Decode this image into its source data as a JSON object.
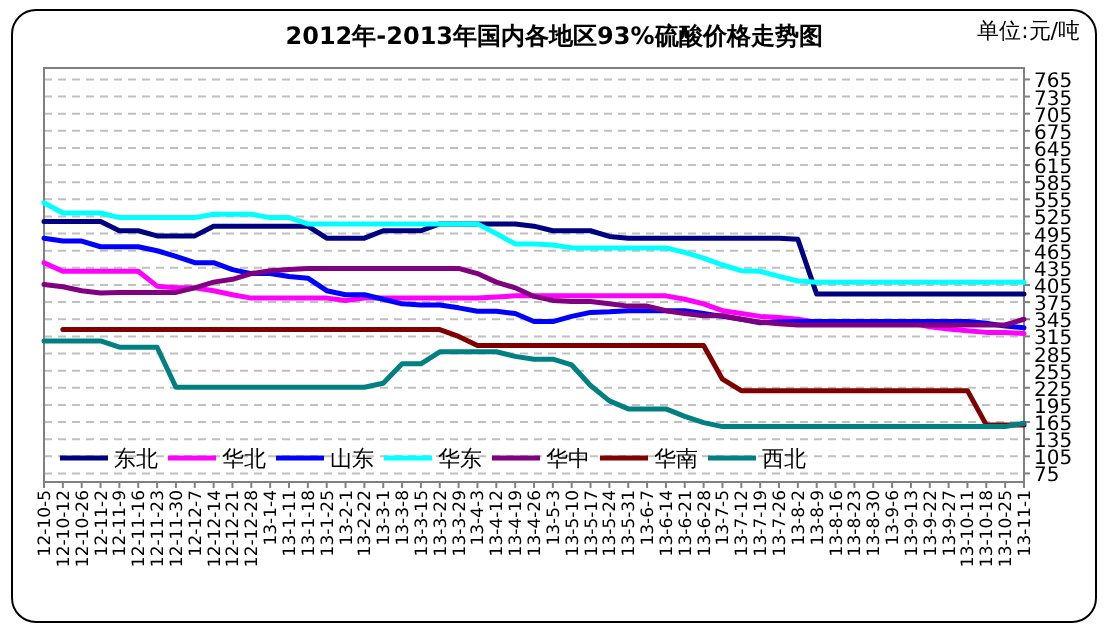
{
  "chart_data": {
    "type": "line",
    "title": "2012年-2013年国内各地区93%硫酸价格走势图",
    "annotations": [
      "单位:元/吨"
    ],
    "categories": [
      "12-10-5",
      "12-10-12",
      "12-10-26",
      "12-11-2",
      "12-11-9",
      "12-11-16",
      "12-11-23",
      "12-11-30",
      "12-12-7",
      "12-12-14",
      "12-12-21",
      "12-12-28",
      "13-1-4",
      "13-1-11",
      "13-1-18",
      "13-1-25",
      "13-2-1",
      "13-2-22",
      "13-3-1",
      "13-3-8",
      "13-3-15",
      "13-3-22",
      "13-3-29",
      "13-4-3",
      "13-4-12",
      "13-4-19",
      "13-4-26",
      "13-5-3",
      "13-5-10",
      "13-5-17",
      "13-5-24",
      "13-5-31",
      "13-6-7",
      "13-6-14",
      "13-6-21",
      "13-6-28",
      "13-7-5",
      "13-7-12",
      "13-7-19",
      "13-7-26",
      "13-8-2",
      "13-8-9",
      "13-8-16",
      "13-8-23",
      "13-8-30",
      "13-9-6",
      "13-9-13",
      "13-9-22",
      "13-9-27",
      "13-10-11",
      "13-10-18",
      "13-10-25",
      "13-11-1"
    ],
    "series": [
      {
        "name": "东北",
        "color": "#000080",
        "values": [
          516,
          516,
          516,
          516,
          500,
          500,
          491,
          491,
          491,
          508,
          508,
          508,
          508,
          508,
          508,
          487,
          487,
          487,
          500,
          500,
          500,
          512,
          512,
          512,
          512,
          512,
          508,
          500,
          500,
          500,
          490,
          487,
          487,
          487,
          487,
          487,
          487,
          487,
          487,
          487,
          485,
          389,
          389,
          389,
          389,
          389,
          389,
          389,
          389,
          389,
          389,
          389,
          389
        ]
      },
      {
        "name": "华北",
        "color": "#ff00ff",
        "values": [
          444,
          429,
          429,
          429,
          429,
          429,
          403,
          400,
          400,
          395,
          388,
          382,
          382,
          382,
          382,
          382,
          378,
          382,
          382,
          382,
          382,
          382,
          382,
          382,
          384,
          386,
          386,
          386,
          386,
          386,
          386,
          386,
          386,
          386,
          380,
          372,
          360,
          355,
          350,
          348,
          345,
          340,
          339,
          339,
          339,
          339,
          339,
          332,
          328,
          325,
          322,
          322,
          320
        ]
      },
      {
        "name": "山东",
        "color": "#0000ff",
        "values": [
          487,
          482,
          482,
          472,
          472,
          472,
          465,
          455,
          444,
          444,
          432,
          425,
          425,
          420,
          417,
          395,
          388,
          388,
          380,
          372,
          370,
          370,
          365,
          359,
          359,
          355,
          341,
          341,
          350,
          357,
          358,
          360,
          360,
          360,
          360,
          355,
          350,
          345,
          339,
          340,
          341,
          341,
          341,
          341,
          341,
          341,
          341,
          341,
          341,
          341,
          338,
          333,
          330
        ]
      },
      {
        "name": "华东",
        "color": "#00ffff",
        "values": [
          549,
          531,
          531,
          531,
          523,
          523,
          523,
          523,
          523,
          529,
          529,
          529,
          523,
          523,
          512,
          512,
          512,
          512,
          512,
          512,
          512,
          512,
          512,
          512,
          495,
          477,
          477,
          475,
          470,
          470,
          470,
          470,
          470,
          470,
          462,
          452,
          440,
          430,
          429,
          420,
          412,
          410,
          410,
          410,
          410,
          410,
          410,
          410,
          410,
          410,
          410,
          410,
          410
        ]
      },
      {
        "name": "华中",
        "color": "#800080",
        "values": [
          406,
          402,
          395,
          391,
          392,
          392,
          392,
          392,
          400,
          410,
          415,
          425,
          430,
          432,
          434,
          434,
          434,
          434,
          434,
          434,
          434,
          434,
          434,
          425,
          410,
          400,
          385,
          378,
          376,
          376,
          372,
          368,
          368,
          360,
          355,
          351,
          351,
          345,
          340,
          337,
          335,
          335,
          335,
          335,
          335,
          335,
          335,
          335,
          335,
          335,
          335,
          335,
          345
        ]
      },
      {
        "name": "华南",
        "color": "#800000",
        "values": [
          null,
          327,
          327,
          327,
          327,
          327,
          327,
          327,
          327,
          327,
          327,
          327,
          327,
          327,
          327,
          327,
          327,
          327,
          327,
          327,
          327,
          327,
          315,
          299,
          299,
          299,
          299,
          299,
          299,
          299,
          299,
          299,
          299,
          299,
          299,
          299,
          240,
          220,
          220,
          220,
          220,
          220,
          220,
          220,
          220,
          220,
          220,
          220,
          220,
          220,
          160,
          160,
          160
        ]
      },
      {
        "name": "西北",
        "color": "#008080",
        "values": [
          307,
          307,
          307,
          307,
          296,
          296,
          296,
          226,
          226,
          226,
          226,
          226,
          226,
          226,
          226,
          226,
          226,
          226,
          233,
          267,
          267,
          288,
          288,
          288,
          288,
          280,
          275,
          275,
          265,
          229,
          202,
          188,
          188,
          188,
          175,
          164,
          157,
          157,
          157,
          157,
          157,
          157,
          157,
          157,
          157,
          157,
          157,
          157,
          157,
          157,
          157,
          157,
          163
        ]
      }
    ],
    "ylim": [
      60,
      785
    ],
    "yticks": [
      75,
      105,
      135,
      165,
      195,
      225,
      255,
      285,
      315,
      345,
      375,
      405,
      435,
      465,
      495,
      525,
      555,
      585,
      615,
      645,
      675,
      705,
      735,
      765
    ],
    "grid": "y",
    "legend": "bottom left"
  }
}
